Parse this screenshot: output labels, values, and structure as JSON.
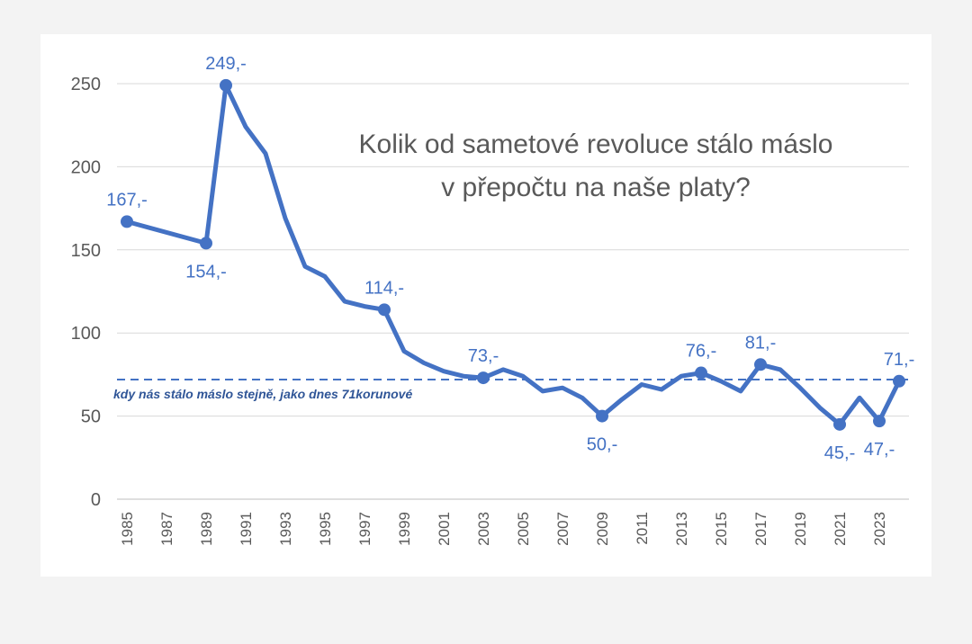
{
  "chart_data": {
    "type": "line",
    "title": "Kolik od sametové revoluce stálo máslo",
    "subtitle": "v přepočtu na naše platy?",
    "xlabel": "",
    "ylabel": "",
    "ylim": [
      0,
      250
    ],
    "yticks": [
      0,
      50,
      100,
      150,
      200,
      250
    ],
    "xticks": [
      "1985",
      "1987",
      "1989",
      "1991",
      "1993",
      "1995",
      "1997",
      "1999",
      "2001",
      "2003",
      "2005",
      "2007",
      "2009",
      "2011",
      "2013",
      "2015",
      "2017",
      "2019",
      "2021",
      "2023"
    ],
    "grid": "horizontal",
    "legend": "none",
    "line_color": "#4472c4",
    "series": [
      {
        "x": [
          1985,
          1989,
          1990,
          1991,
          1992,
          1993,
          1994,
          1995,
          1996,
          1997,
          1998,
          1999,
          2000,
          2001,
          2002,
          2003,
          2004,
          2005,
          2006,
          2007,
          2008,
          2009,
          2010,
          2011,
          2012,
          2013,
          2014,
          2015,
          2016,
          2017,
          2018,
          2019,
          2020,
          2021,
          2022,
          2023,
          2024
        ],
        "values": [
          167,
          154,
          249,
          224,
          208,
          169,
          140,
          134,
          119,
          116,
          114,
          89,
          82,
          77,
          74,
          73,
          78,
          74,
          65,
          67,
          61,
          50,
          60,
          69,
          66,
          74,
          76,
          71,
          65,
          81,
          78,
          67,
          55,
          45,
          61,
          47,
          71
        ]
      }
    ],
    "labeled_points": [
      {
        "x": 1985,
        "y": 167,
        "text": "167,-",
        "pos": "above"
      },
      {
        "x": 1989,
        "y": 154,
        "text": "154,-",
        "pos": "below"
      },
      {
        "x": 1990,
        "y": 249,
        "text": "249,-",
        "pos": "above"
      },
      {
        "x": 1998,
        "y": 114,
        "text": "114,-",
        "pos": "above"
      },
      {
        "x": 2003,
        "y": 73,
        "text": "73,-",
        "pos": "above"
      },
      {
        "x": 2009,
        "y": 50,
        "text": "50,-",
        "pos": "below"
      },
      {
        "x": 2014,
        "y": 76,
        "text": "76,-",
        "pos": "above"
      },
      {
        "x": 2017,
        "y": 81,
        "text": "81,-",
        "pos": "above"
      },
      {
        "x": 2021,
        "y": 45,
        "text": "45,-",
        "pos": "below"
      },
      {
        "x": 2023,
        "y": 47,
        "text": "47,-",
        "pos": "below"
      },
      {
        "x": 2024,
        "y": 71,
        "text": "71,-",
        "pos": "above"
      }
    ],
    "reference_line": {
      "y": 72,
      "style": "dashed",
      "label": "kdy nás stálo máslo stejně, jako dnes 71korunové"
    }
  }
}
